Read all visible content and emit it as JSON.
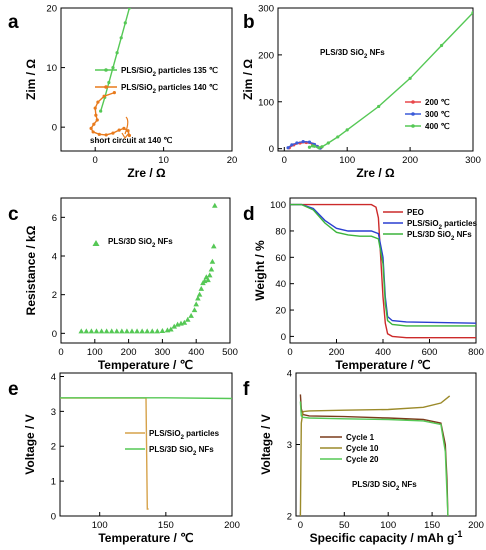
{
  "chart_data": [
    {
      "id": "a",
      "panel_label": "a",
      "type": "scatter",
      "xlabel": "Zre / Ω",
      "ylabel": "Zim / Ω",
      "xlim": [
        -5,
        20
      ],
      "ylim": [
        -4,
        20
      ],
      "xticks": [
        0,
        10,
        20
      ],
      "yticks": [
        0,
        10,
        20
      ],
      "series": [
        {
          "name": "PLS/SiO₂ particles 135 ℃",
          "color": "#55c855",
          "points": [
            [
              0.8,
              2.7
            ],
            [
              1.4,
              5.0
            ],
            [
              2.0,
              7.5
            ],
            [
              2.6,
              10.0
            ],
            [
              3.2,
              12.5
            ],
            [
              3.8,
              15.0
            ],
            [
              4.4,
              17.5
            ],
            [
              5.0,
              20.0
            ]
          ]
        },
        {
          "name": "PLS/SiO₂ particles 140 ℃",
          "color": "#e87a1c",
          "points": [
            [
              2.8,
              5.8
            ],
            [
              1.3,
              5.2
            ],
            [
              0.4,
              4.2
            ],
            [
              0.0,
              3.2
            ],
            [
              0.1,
              2.0
            ],
            [
              0.3,
              1.2
            ],
            [
              -0.2,
              0.5
            ],
            [
              -0.6,
              -0.2
            ],
            [
              -0.3,
              -0.8
            ],
            [
              0.6,
              -1.2
            ],
            [
              1.6,
              -1.3
            ],
            [
              2.6,
              -1.0
            ],
            [
              3.5,
              -0.5
            ],
            [
              4.2,
              -0.2
            ],
            [
              4.8,
              -0.6
            ],
            [
              5.0,
              -1.4
            ]
          ]
        }
      ],
      "annotations": [
        "short circuit at 140 ℃"
      ]
    },
    {
      "id": "b",
      "panel_label": "b",
      "type": "line",
      "xlabel": "Zre / Ω",
      "ylabel": "Zim / Ω",
      "xlim": [
        -10,
        300
      ],
      "ylim": [
        -5,
        300
      ],
      "xticks": [
        0,
        100,
        200,
        300
      ],
      "yticks": [
        0,
        100,
        200,
        300
      ],
      "inset_text": "PLS/3D SiO₂ NFs",
      "series": [
        {
          "name": "200 ℃",
          "color": "#e8474b",
          "points": [
            [
              8,
              2
            ],
            [
              15,
              8
            ],
            [
              25,
              12
            ],
            [
              35,
              13
            ],
            [
              45,
              10
            ],
            [
              52,
              5
            ],
            [
              58,
              2
            ]
          ]
        },
        {
          "name": "300 ℃",
          "color": "#3b5bd9",
          "points": [
            [
              6,
              2
            ],
            [
              12,
              8
            ],
            [
              20,
              12
            ],
            [
              30,
              15
            ],
            [
              40,
              14
            ],
            [
              48,
              9
            ],
            [
              53,
              4
            ],
            [
              57,
              1
            ]
          ]
        },
        {
          "name": "400 ℃",
          "color": "#55c855",
          "points": [
            [
              40,
              3
            ],
            [
              45,
              6
            ],
            [
              48,
              5
            ],
            [
              55,
              2
            ],
            [
              60,
              4
            ],
            [
              70,
              12
            ],
            [
              85,
              25
            ],
            [
              100,
              40
            ],
            [
              150,
              90
            ],
            [
              200,
              150
            ],
            [
              250,
              220
            ],
            [
              300,
              290
            ]
          ]
        }
      ]
    },
    {
      "id": "c",
      "panel_label": "c",
      "type": "scatter",
      "xlabel": "Temperature / ℃",
      "ylabel": "Resistance / kΩ",
      "xlim": [
        0,
        500
      ],
      "ylim": [
        -0.5,
        7
      ],
      "xticks": [
        0,
        100,
        200,
        300,
        400,
        500
      ],
      "yticks": [
        0,
        2,
        4,
        6
      ],
      "series": [
        {
          "name": "PLS/3D SiO₂ NFs",
          "color": "#55c855",
          "marker": "triangle",
          "points": [
            [
              60,
              0.1
            ],
            [
              75,
              0.1
            ],
            [
              90,
              0.1
            ],
            [
              105,
              0.1
            ],
            [
              120,
              0.1
            ],
            [
              135,
              0.1
            ],
            [
              150,
              0.1
            ],
            [
              165,
              0.1
            ],
            [
              180,
              0.1
            ],
            [
              195,
              0.1
            ],
            [
              210,
              0.1
            ],
            [
              225,
              0.1
            ],
            [
              240,
              0.1
            ],
            [
              255,
              0.1
            ],
            [
              270,
              0.1
            ],
            [
              285,
              0.1
            ],
            [
              300,
              0.12
            ],
            [
              315,
              0.15
            ],
            [
              325,
              0.2
            ],
            [
              335,
              0.35
            ],
            [
              345,
              0.45
            ],
            [
              355,
              0.5
            ],
            [
              365,
              0.55
            ],
            [
              375,
              0.7
            ],
            [
              385,
              0.9
            ],
            [
              395,
              1.2
            ],
            [
              400,
              1.5
            ],
            [
              405,
              1.8
            ],
            [
              410,
              2.0
            ],
            [
              415,
              2.3
            ],
            [
              420,
              2.6
            ],
            [
              425,
              2.7
            ],
            [
              430,
              2.9
            ],
            [
              435,
              2.75
            ],
            [
              440,
              3.0
            ],
            [
              445,
              3.3
            ],
            [
              448,
              3.7
            ],
            [
              452,
              4.5
            ],
            [
              455,
              6.6
            ]
          ]
        }
      ]
    },
    {
      "id": "d",
      "panel_label": "d",
      "type": "line",
      "xlabel": "Temperature / ℃",
      "ylabel": "Weight / %",
      "xlim": [
        0,
        800
      ],
      "ylim": [
        -5,
        105
      ],
      "xticks": [
        0,
        200,
        400,
        600,
        800
      ],
      "yticks": [
        0,
        20,
        40,
        60,
        80,
        100
      ],
      "series": [
        {
          "name": "PEO",
          "color": "#cc2a2a",
          "points": [
            [
              0,
              100
            ],
            [
              100,
              100
            ],
            [
              200,
              100
            ],
            [
              300,
              100
            ],
            [
              350,
              100
            ],
            [
              370,
              98
            ],
            [
              380,
              90
            ],
            [
              390,
              60
            ],
            [
              400,
              30
            ],
            [
              410,
              10
            ],
            [
              420,
              2
            ],
            [
              440,
              0
            ],
            [
              500,
              -1
            ],
            [
              800,
              -1
            ]
          ]
        },
        {
          "name": "PLS/SiO₂ particles",
          "color": "#2a3fd0",
          "points": [
            [
              0,
              100
            ],
            [
              50,
              100
            ],
            [
              100,
              97
            ],
            [
              150,
              88
            ],
            [
              200,
              82
            ],
            [
              250,
              80
            ],
            [
              300,
              80
            ],
            [
              350,
              80
            ],
            [
              380,
              78
            ],
            [
              400,
              60
            ],
            [
              410,
              30
            ],
            [
              420,
              15
            ],
            [
              440,
              12
            ],
            [
              500,
              11
            ],
            [
              800,
              10
            ]
          ]
        },
        {
          "name": "PLS/3D SiO₂ NFs",
          "color": "#3cb43c",
          "points": [
            [
              0,
              100
            ],
            [
              50,
              100
            ],
            [
              100,
              96
            ],
            [
              150,
              86
            ],
            [
              200,
              79
            ],
            [
              250,
              77
            ],
            [
              300,
              76
            ],
            [
              350,
              76
            ],
            [
              380,
              74
            ],
            [
              400,
              55
            ],
            [
              410,
              25
            ],
            [
              420,
              12
            ],
            [
              440,
              9
            ],
            [
              500,
              8
            ],
            [
              800,
              8
            ]
          ]
        }
      ]
    },
    {
      "id": "e",
      "panel_label": "e",
      "type": "line",
      "xlabel": "Temperature / ℃",
      "ylabel": "Voltage / V",
      "xlim": [
        70,
        200
      ],
      "ylim": [
        0,
        4.1
      ],
      "xticks": [
        100,
        150,
        200
      ],
      "yticks": [
        0,
        1,
        2,
        3,
        4
      ],
      "series": [
        {
          "name": "PLS/SiO₂ particles",
          "color": "#d6a24a",
          "points": [
            [
              70,
              3.38
            ],
            [
              110,
              3.38
            ],
            [
              134,
              3.38
            ],
            [
              135,
              3.38
            ],
            [
              136,
              0.2
            ],
            [
              137,
              0.2
            ]
          ]
        },
        {
          "name": "PLS/3D SiO₂ NFs",
          "color": "#55c855",
          "points": [
            [
              70,
              3.39
            ],
            [
              100,
              3.39
            ],
            [
              150,
              3.39
            ],
            [
              200,
              3.37
            ]
          ]
        }
      ]
    },
    {
      "id": "f",
      "panel_label": "f",
      "type": "line",
      "xlabel": "Specific capacity / mAh g⁻¹",
      "ylabel": "Voltage / V",
      "xlim": [
        -5,
        200
      ],
      "ylim": [
        2,
        4
      ],
      "xticks": [
        0,
        50,
        100,
        150,
        200
      ],
      "yticks": [
        2,
        3,
        4
      ],
      "inset_text": "PLS/3D SiO₂ NFs",
      "series": [
        {
          "name": "Cycle 1",
          "color": "#7a3b1c",
          "points": [
            [
              0,
              3.7
            ],
            [
              1,
              3.5
            ],
            [
              3,
              3.42
            ],
            [
              10,
              3.4
            ],
            [
              50,
              3.39
            ],
            [
              100,
              3.37
            ],
            [
              140,
              3.35
            ],
            [
              160,
              3.3
            ],
            [
              165,
              3.0
            ],
            [
              167,
              2.5
            ],
            [
              168,
              2.0
            ]
          ]
        },
        {
          "name": "Cycle 10",
          "color": "#9b8a2a",
          "points": [
            [
              0,
              2.0
            ],
            [
              1,
              3.3
            ],
            [
              3,
              3.46
            ],
            [
              10,
              3.47
            ],
            [
              50,
              3.48
            ],
            [
              100,
              3.49
            ],
            [
              140,
              3.52
            ],
            [
              160,
              3.58
            ],
            [
              170,
              3.68
            ]
          ]
        },
        {
          "name": "Cycle 20",
          "color": "#55c855",
          "points": [
            [
              0,
              3.6
            ],
            [
              1,
              3.4
            ],
            [
              3,
              3.38
            ],
            [
              10,
              3.37
            ],
            [
              50,
              3.36
            ],
            [
              100,
              3.35
            ],
            [
              140,
              3.33
            ],
            [
              160,
              3.28
            ],
            [
              165,
              2.9
            ],
            [
              168,
              2.0
            ]
          ]
        }
      ]
    }
  ]
}
